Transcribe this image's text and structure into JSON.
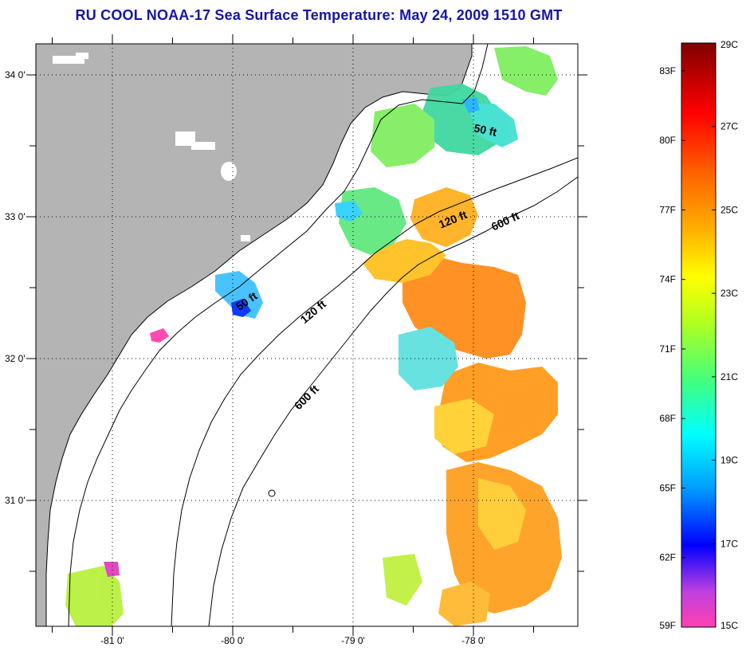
{
  "title": "RU COOL  NOAA-17  Sea Surface Temperature:  May 24, 2009 1510 GMT",
  "map": {
    "lat_labels": [
      {
        "value": 34,
        "text": "34 0'"
      },
      {
        "value": 33,
        "text": "33 0'"
      },
      {
        "value": 32,
        "text": "32 0'"
      },
      {
        "value": 31,
        "text": "31 0'"
      }
    ],
    "lon_labels": [
      {
        "value": -81,
        "text": "-81 0'"
      },
      {
        "value": -80,
        "text": "-80 0'"
      },
      {
        "value": -79,
        "text": "-79 0'"
      },
      {
        "value": -78,
        "text": "-78 0'"
      }
    ],
    "contour_labels": [
      {
        "text": "50 ft",
        "rotation": 12
      },
      {
        "text": "120 ft",
        "rotation": -22
      },
      {
        "text": "600 ft",
        "rotation": -25
      },
      {
        "text": "50 ft",
        "rotation": -35
      },
      {
        "text": "120 ft",
        "rotation": -40
      },
      {
        "text": "600 ft",
        "rotation": -45
      }
    ],
    "colors": {
      "land": "#b4b4b4",
      "ocean": "#ffffff",
      "coast": "#000000"
    }
  },
  "colorbar": {
    "fahrenheit_labels": [
      "83F",
      "80F",
      "77F",
      "74F",
      "71F",
      "68F",
      "65F",
      "62F",
      "59F"
    ],
    "celsius_labels": [
      "29C",
      "27C",
      "25C",
      "23C",
      "21C",
      "19C",
      "17C",
      "15C"
    ],
    "range_c": [
      15,
      29
    ],
    "gradient_stops": [
      "#ff40b0",
      "#c040e0",
      "#0000ff",
      "#00a0ff",
      "#00ffff",
      "#40ff80",
      "#b0ff20",
      "#ffff00",
      "#ffb000",
      "#ff6000",
      "#ff0000",
      "#b00000",
      "#800000"
    ]
  }
}
